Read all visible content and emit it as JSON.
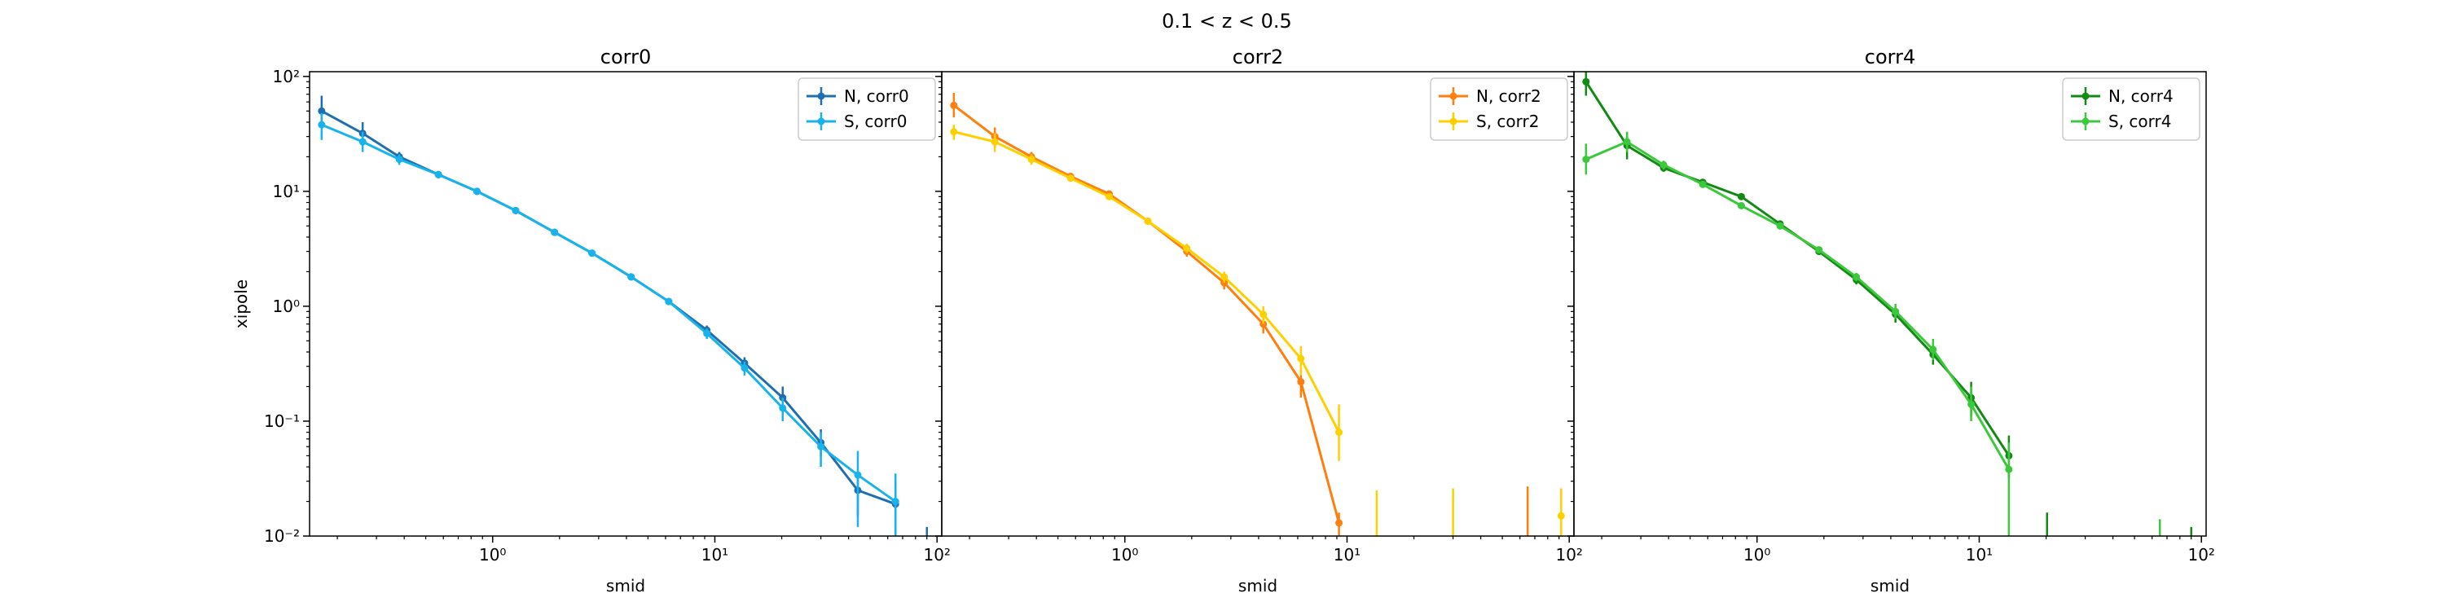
{
  "figure": {
    "suptitle": "0.1 < z < 0.5"
  },
  "colors": {
    "N_corr0": "#1f6fb0",
    "S_corr0": "#17b3ea",
    "N_corr2": "#ff7f0e",
    "S_corr2": "#ffd000",
    "N_corr4": "#138a13",
    "S_corr4": "#3cc83c"
  },
  "chart_data": [
    {
      "type": "line",
      "title": "corr0",
      "xlabel": "smid",
      "ylabel": "xipole",
      "xscale": "log",
      "yscale": "log",
      "xlim": [
        0.15,
        105
      ],
      "ylim": [
        0.01,
        110
      ],
      "legend": "upper right",
      "series": [
        {
          "name": "N, corr0",
          "color_key": "N_corr0",
          "x": [
            0.17,
            0.26,
            0.38,
            0.57,
            0.85,
            1.27,
            1.9,
            2.8,
            4.2,
            6.2,
            9.2,
            13.6,
            20.2,
            30.0,
            44.0,
            65.0
          ],
          "y": [
            50,
            32,
            20,
            14,
            10,
            6.8,
            4.4,
            2.9,
            1.8,
            1.1,
            0.62,
            0.32,
            0.16,
            0.065,
            0.025,
            0.019
          ],
          "yerr_lo": [
            36,
            25,
            18,
            13,
            9.6,
            6.5,
            4.2,
            2.8,
            1.72,
            1.03,
            0.56,
            0.28,
            0.125,
            0.049,
            0.015,
            0.009
          ],
          "yerr_hi": [
            68,
            40,
            22,
            15,
            10.4,
            7.1,
            4.6,
            3.0,
            1.9,
            1.17,
            0.68,
            0.36,
            0.2,
            0.085,
            0.035,
            0.03
          ]
        },
        {
          "name": "S, corr0",
          "color_key": "S_corr0",
          "x": [
            0.17,
            0.26,
            0.38,
            0.57,
            0.85,
            1.27,
            1.9,
            2.8,
            4.2,
            6.2,
            9.2,
            13.6,
            20.2,
            30.0,
            44.0,
            65.0
          ],
          "y": [
            38,
            27,
            19,
            14,
            10,
            6.8,
            4.4,
            2.9,
            1.8,
            1.1,
            0.58,
            0.29,
            0.13,
            0.06,
            0.034,
            0.02
          ],
          "yerr_lo": [
            28,
            22,
            17,
            13,
            9.6,
            6.5,
            4.2,
            2.8,
            1.72,
            1.03,
            0.52,
            0.25,
            0.1,
            0.04,
            0.012,
            0.01
          ],
          "yerr_hi": [
            48,
            33,
            21,
            15,
            10.4,
            7.1,
            4.6,
            3.0,
            1.9,
            1.17,
            0.64,
            0.33,
            0.16,
            0.08,
            0.055,
            0.035
          ]
        }
      ],
      "stray_errorbars": [
        {
          "x": 90,
          "lo": 0.01,
          "hi": 0.012,
          "color_key": "N_corr0"
        }
      ]
    },
    {
      "type": "line",
      "title": "corr2",
      "xlabel": "smid",
      "ylabel": "",
      "xscale": "log",
      "yscale": "log",
      "xlim": [
        0.15,
        105
      ],
      "ylim": [
        0.01,
        110
      ],
      "legend": "upper right",
      "series": [
        {
          "name": "N, corr2",
          "color_key": "N_corr2",
          "x": [
            0.17,
            0.26,
            0.38,
            0.57,
            0.85,
            1.27,
            1.9,
            2.8,
            4.2,
            6.2,
            9.2
          ],
          "y": [
            56,
            30,
            20,
            13.5,
            9.5,
            5.5,
            3.0,
            1.6,
            0.7,
            0.22,
            0.013
          ],
          "yerr_lo": [
            44,
            24,
            18,
            12.8,
            9.0,
            5.2,
            2.7,
            1.4,
            0.58,
            0.16,
            0.01
          ],
          "yerr_hi": [
            72,
            36,
            22,
            14.2,
            10.0,
            5.8,
            3.3,
            1.8,
            0.82,
            0.28,
            0.016
          ]
        },
        {
          "name": "S, corr2",
          "color_key": "S_corr2",
          "x": [
            0.17,
            0.26,
            0.38,
            0.57,
            0.85,
            1.27,
            1.9,
            2.8,
            4.2,
            6.2,
            9.2
          ],
          "y": [
            33,
            27,
            19,
            13,
            9,
            5.5,
            3.2,
            1.8,
            0.85,
            0.35,
            0.08
          ],
          "yerr_lo": [
            28,
            22,
            17,
            12.2,
            8.5,
            5.2,
            2.9,
            1.6,
            0.7,
            0.25,
            0.045
          ],
          "yerr_hi": [
            38,
            32,
            21,
            13.8,
            9.5,
            5.8,
            3.5,
            2.0,
            1.0,
            0.45,
            0.14
          ]
        }
      ],
      "stray_errorbars": [
        {
          "x": 13.6,
          "lo": 0.01,
          "hi": 0.025,
          "color_key": "S_corr2"
        },
        {
          "x": 30.0,
          "lo": 0.01,
          "hi": 0.026,
          "color_key": "S_corr2"
        },
        {
          "x": 65.0,
          "lo": 0.01,
          "hi": 0.027,
          "color_key": "N_corr2"
        },
        {
          "x": 92.0,
          "lo": 0.01,
          "hi": 0.026,
          "color_key": "S_corr2",
          "y": 0.015
        }
      ]
    },
    {
      "type": "line",
      "title": "corr4",
      "xlabel": "smid",
      "ylabel": "",
      "xscale": "log",
      "yscale": "log",
      "xlim": [
        0.15,
        105
      ],
      "ylim": [
        0.01,
        110
      ],
      "legend": "upper right",
      "series": [
        {
          "name": "N, corr4",
          "color_key": "N_corr4",
          "x": [
            0.17,
            0.26,
            0.38,
            0.57,
            0.85,
            1.27,
            1.9,
            2.8,
            4.2,
            6.2,
            9.2,
            13.6
          ],
          "y": [
            90,
            25,
            16,
            12,
            9.0,
            5.2,
            3.0,
            1.7,
            0.85,
            0.38,
            0.16,
            0.05
          ],
          "yerr_lo": [
            68,
            19,
            14.8,
            11.2,
            8.5,
            4.9,
            2.8,
            1.55,
            0.72,
            0.31,
            0.11,
            0.032
          ],
          "yerr_hi": [
            110,
            32,
            17.5,
            12.8,
            9.5,
            5.5,
            3.2,
            1.85,
            1.0,
            0.46,
            0.22,
            0.075
          ]
        },
        {
          "name": "S, corr4",
          "color_key": "S_corr4",
          "x": [
            0.17,
            0.26,
            0.38,
            0.57,
            0.85,
            1.27,
            1.9,
            2.8,
            4.2,
            6.2,
            9.2,
            13.6
          ],
          "y": [
            19,
            27,
            17,
            11.5,
            7.5,
            5.0,
            3.1,
            1.8,
            0.9,
            0.42,
            0.14,
            0.038
          ],
          "yerr_lo": [
            14,
            22,
            15.5,
            10.8,
            7.1,
            4.7,
            2.9,
            1.65,
            0.78,
            0.34,
            0.1,
            0.01
          ],
          "yerr_hi": [
            26,
            33,
            18.5,
            12.2,
            7.9,
            5.3,
            3.3,
            1.95,
            1.05,
            0.52,
            0.2,
            0.065
          ]
        }
      ],
      "stray_errorbars": [
        {
          "x": 20.2,
          "lo": 0.01,
          "hi": 0.016,
          "color_key": "N_corr4"
        },
        {
          "x": 65.0,
          "lo": 0.01,
          "hi": 0.014,
          "color_key": "S_corr4"
        },
        {
          "x": 90.0,
          "lo": 0.01,
          "hi": 0.012,
          "color_key": "N_corr4"
        }
      ]
    }
  ],
  "ticks": {
    "x": [
      {
        "v": 1,
        "label": "10⁰"
      },
      {
        "v": 10,
        "label": "10¹"
      },
      {
        "v": 100,
        "label": "10²"
      }
    ],
    "y": [
      {
        "v": 0.01,
        "label": "10⁻²"
      },
      {
        "v": 0.1,
        "label": "10⁻¹"
      },
      {
        "v": 1,
        "label": "10⁰"
      },
      {
        "v": 10,
        "label": "10¹"
      },
      {
        "v": 100,
        "label": "10²"
      }
    ]
  }
}
